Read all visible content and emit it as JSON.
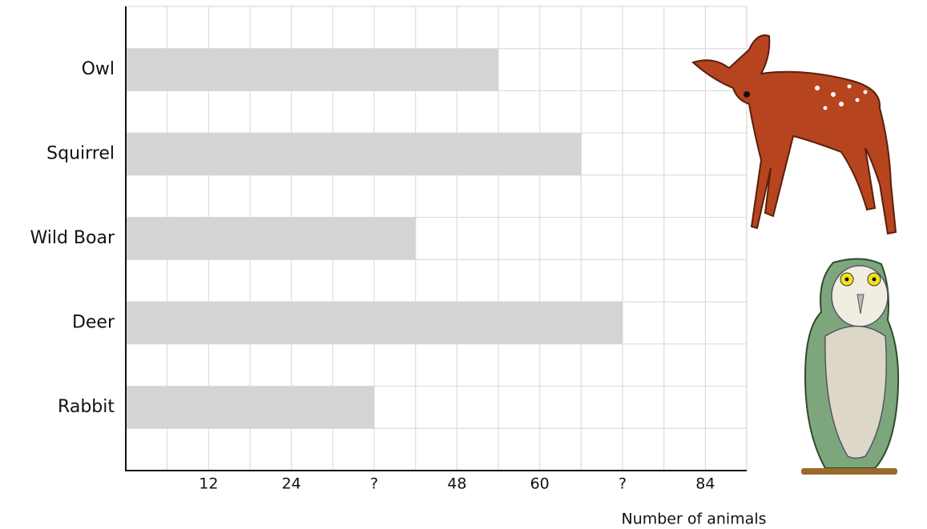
{
  "chart_data": {
    "type": "hbar",
    "categories": [
      "Owl",
      "Squirrel",
      "Wild Boar",
      "Deer",
      "Rabbit"
    ],
    "values": [
      54,
      66,
      42,
      72,
      36
    ],
    "color": "#d3d4d6",
    "xlabel": "Number of animals",
    "xlim": [
      0,
      90
    ],
    "xticks": [
      12,
      24,
      {
        "value": 36,
        "label": "?"
      },
      48,
      60,
      {
        "value": 72,
        "label": "?"
      },
      84
    ],
    "minor_xticks": [
      6,
      18,
      30,
      42,
      54,
      66,
      78,
      90
    ],
    "grid": true
  }
}
